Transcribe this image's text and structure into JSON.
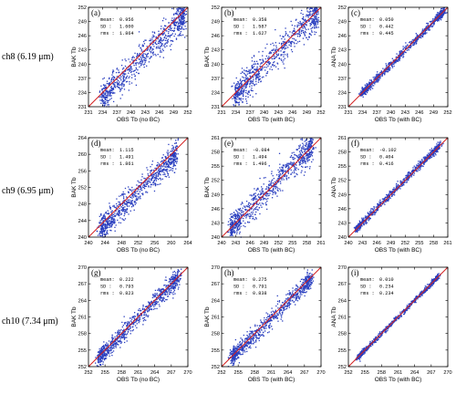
{
  "row_labels": [
    {
      "channel": "ch8",
      "wavelength": "(6.19 μm)"
    },
    {
      "channel": "ch9",
      "wavelength": "(6.95 μm)"
    },
    {
      "channel": "ch10",
      "wavelength": "(7.34 μm)"
    }
  ],
  "colors": {
    "points": "#2a3fbf",
    "fit_line": "#d42020",
    "axes": "#000000"
  },
  "chart_data": [
    {
      "type": "scatter",
      "panel": "(a)",
      "row": 0,
      "col": 0,
      "xlabel": "OBS Tb (no BC)",
      "ylabel": "BAK Tb",
      "xlim": [
        231,
        252
      ],
      "ylim": [
        231,
        252
      ],
      "xticks": [
        231,
        234,
        237,
        240,
        243,
        246,
        249,
        252
      ],
      "yticks": [
        231,
        234,
        237,
        240,
        243,
        246,
        249,
        252
      ],
      "stats": {
        "mean": "0.956",
        "sd": "1.600",
        "rms": "1.864"
      },
      "cloud": {
        "x_range": [
          234,
          251
        ],
        "center_offset": -0.956,
        "spread": 1.6
      }
    },
    {
      "type": "scatter",
      "panel": "(b)",
      "row": 0,
      "col": 1,
      "xlabel": "OBS Tb (with BC)",
      "ylabel": "BAK Tb",
      "xlim": [
        231,
        252
      ],
      "ylim": [
        231,
        252
      ],
      "xticks": [
        231,
        234,
        237,
        240,
        243,
        246,
        249,
        252
      ],
      "yticks": [
        231,
        234,
        237,
        240,
        243,
        246,
        249,
        252
      ],
      "stats": {
        "mean": "0.358",
        "sd": "1.587",
        "rms": "1.627"
      },
      "cloud": {
        "x_range": [
          234,
          251
        ],
        "center_offset": -0.358,
        "spread": 1.587
      }
    },
    {
      "type": "scatter",
      "panel": "(c)",
      "row": 0,
      "col": 2,
      "xlabel": "OBS Tb (with BC)",
      "ylabel": "ANA Tb",
      "xlim": [
        231,
        252
      ],
      "ylim": [
        231,
        252
      ],
      "xticks": [
        231,
        234,
        237,
        240,
        243,
        246,
        249,
        252
      ],
      "yticks": [
        231,
        234,
        237,
        240,
        243,
        246,
        249,
        252
      ],
      "stats": {
        "mean": "0.050",
        "sd": "0.442",
        "rms": "0.445"
      },
      "cloud": {
        "x_range": [
          234,
          251
        ],
        "center_offset": -0.05,
        "spread": 0.442
      }
    },
    {
      "type": "scatter",
      "panel": "(d)",
      "row": 1,
      "col": 0,
      "xlabel": "OBS Tb (no BC)",
      "ylabel": "BAK Tb",
      "xlim": [
        240,
        264
      ],
      "ylim": [
        240,
        264
      ],
      "xticks": [
        240,
        244,
        248,
        252,
        256,
        260,
        264
      ],
      "yticks": [
        240,
        244,
        248,
        252,
        256,
        260,
        264
      ],
      "stats": {
        "mean": "1.115",
        "sd": "1.491",
        "rms": "1.861"
      },
      "cloud": {
        "x_range": [
          243,
          261
        ],
        "center_offset": -1.115,
        "spread": 1.491
      }
    },
    {
      "type": "scatter",
      "panel": "(e)",
      "row": 1,
      "col": 1,
      "xlabel": "OBS Tb (with BC)",
      "ylabel": "BAK Tb",
      "xlim": [
        240,
        261
      ],
      "ylim": [
        240,
        261
      ],
      "xticks": [
        240,
        243,
        246,
        249,
        252,
        255,
        258,
        261
      ],
      "yticks": [
        240,
        243,
        246,
        249,
        252,
        255,
        258,
        261
      ],
      "stats": {
        "mean": "-0.084",
        "sd": "1.494",
        "rms": "1.496"
      },
      "cloud": {
        "x_range": [
          242,
          259
        ],
        "center_offset": 0.084,
        "spread": 1.494
      }
    },
    {
      "type": "scatter",
      "panel": "(f)",
      "row": 1,
      "col": 2,
      "xlabel": "OBS Tb (with BC)",
      "ylabel": "ANA Tb",
      "xlim": [
        240,
        261
      ],
      "ylim": [
        240,
        261
      ],
      "xticks": [
        240,
        243,
        246,
        249,
        252,
        255,
        258,
        261
      ],
      "yticks": [
        240,
        243,
        246,
        249,
        252,
        255,
        258,
        261
      ],
      "stats": {
        "mean": "-0.102",
        "sd": "0.404",
        "rms": "0.416"
      },
      "cloud": {
        "x_range": [
          242,
          259
        ],
        "center_offset": 0.102,
        "spread": 0.404
      }
    },
    {
      "type": "scatter",
      "panel": "(g)",
      "row": 2,
      "col": 0,
      "xlabel": "OBS Tb (no BC)",
      "ylabel": "BAK Tb",
      "xlim": [
        252,
        270
      ],
      "ylim": [
        252,
        270
      ],
      "xticks": [
        252,
        255,
        258,
        261,
        264,
        267,
        270
      ],
      "yticks": [
        252,
        255,
        258,
        261,
        264,
        267,
        270
      ],
      "stats": {
        "mean": "0.222",
        "sd": "0.793",
        "rms": "0.823"
      },
      "cloud": {
        "x_range": [
          254,
          268
        ],
        "center_offset": -0.222,
        "spread": 0.793
      }
    },
    {
      "type": "scatter",
      "panel": "(h)",
      "row": 2,
      "col": 1,
      "xlabel": "OBS Tb (with BC)",
      "ylabel": "BAK Tb",
      "xlim": [
        252,
        270
      ],
      "ylim": [
        252,
        270
      ],
      "xticks": [
        252,
        255,
        258,
        261,
        264,
        267,
        270
      ],
      "yticks": [
        252,
        255,
        258,
        261,
        264,
        267,
        270
      ],
      "stats": {
        "mean": "0.275",
        "sd": "0.791",
        "rms": "0.838"
      },
      "cloud": {
        "x_range": [
          254,
          268
        ],
        "center_offset": -0.275,
        "spread": 0.791
      }
    },
    {
      "type": "scatter",
      "panel": "(i)",
      "row": 2,
      "col": 2,
      "xlabel": "OBS Tb (with BC)",
      "ylabel": "ANA Tb",
      "xlim": [
        252,
        270
      ],
      "ylim": [
        252,
        270
      ],
      "xticks": [
        252,
        255,
        258,
        261,
        264,
        267,
        270
      ],
      "yticks": [
        252,
        255,
        258,
        261,
        264,
        267,
        270
      ],
      "stats": {
        "mean": "0.010",
        "sd": "0.234",
        "rms": "0.234"
      },
      "cloud": {
        "x_range": [
          254,
          268
        ],
        "center_offset": -0.01,
        "spread": 0.234
      }
    }
  ]
}
